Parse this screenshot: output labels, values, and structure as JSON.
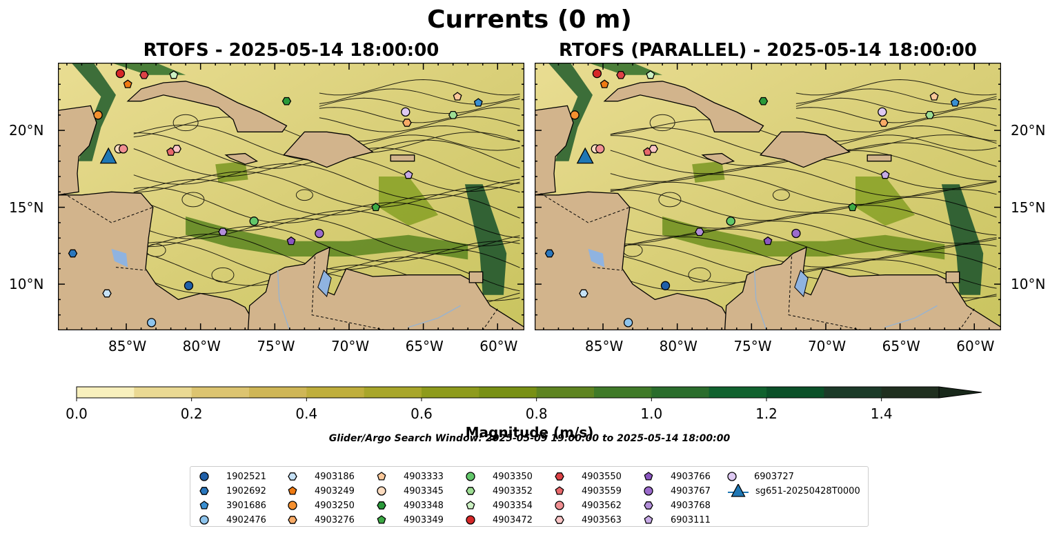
{
  "suptitle": "Currents (0 m)",
  "panels": [
    {
      "title": "RTOFS - 2025-05-14 18:00:00"
    },
    {
      "title": "RTOFS (PARALLEL) - 2025-05-14 18:00:00"
    }
  ],
  "colors": {
    "land": "#d2b48c",
    "lake": "#8fb3e0",
    "river": "#9bb3cc",
    "ocean_low": "#f3e9a8",
    "ocean_high": "#0c4a25",
    "streamline": "#000000"
  },
  "x_ticks": [
    "85°W",
    "80°W",
    "75°W",
    "70°W",
    "65°W",
    "60°W"
  ],
  "y_ticks": [
    "20°N",
    "15°N",
    "10°N"
  ],
  "colorbar": {
    "label": "Magnitude (m/s)",
    "ticks": [
      "0.0",
      "0.2",
      "0.4",
      "0.6",
      "0.8",
      "1.0",
      "1.2",
      "1.4"
    ],
    "colors": [
      "#f8f0bd",
      "#ead993",
      "#dcc470",
      "#cfb656",
      "#bfae3c",
      "#a8a62a",
      "#8e9b1c",
      "#789014",
      "#5e8420",
      "#3f7a28",
      "#2a6d2c",
      "#10622e",
      "#0a5028",
      "#1b3a28",
      "#1f2f1f",
      "#18281a"
    ]
  },
  "search_window": "Glider/Argo Search Window: 2025-05-09 19:00:00 to 2025-05-14 18:00:00",
  "legend": [
    {
      "label": "1902521",
      "marker": "circle",
      "color": "#1f5fa8"
    },
    {
      "label": "1902692",
      "marker": "hexagon",
      "color": "#2a77bd"
    },
    {
      "label": "3901686",
      "marker": "pentagon",
      "color": "#3a8fd1"
    },
    {
      "label": "4902476",
      "marker": "circle",
      "color": "#8ec4ec"
    },
    {
      "label": "4903186",
      "marker": "hexagon",
      "color": "#c6e2f7"
    },
    {
      "label": "4903249",
      "marker": "pentagon",
      "color": "#ef7a12"
    },
    {
      "label": "4903250",
      "marker": "circle",
      "color": "#f5902f"
    },
    {
      "label": "4903276",
      "marker": "hexagon",
      "color": "#f8ab67"
    },
    {
      "label": "4903333",
      "marker": "pentagon",
      "color": "#fbc89a"
    },
    {
      "label": "4903345",
      "marker": "circle",
      "color": "#fddcc0"
    },
    {
      "label": "4903348",
      "marker": "hexagon",
      "color": "#2a9a3a"
    },
    {
      "label": "4903349",
      "marker": "pentagon",
      "color": "#3daa45"
    },
    {
      "label": "4903350",
      "marker": "circle",
      "color": "#62c76a"
    },
    {
      "label": "4903352",
      "marker": "hexagon",
      "color": "#9ede94"
    },
    {
      "label": "4903354",
      "marker": "pentagon",
      "color": "#ccf1c3"
    },
    {
      "label": "4903472",
      "marker": "circle",
      "color": "#d62728"
    },
    {
      "label": "4903550",
      "marker": "hexagon",
      "color": "#dd4246"
    },
    {
      "label": "4903559",
      "marker": "pentagon",
      "color": "#e8686b"
    },
    {
      "label": "4903562",
      "marker": "circle",
      "color": "#f08f92"
    },
    {
      "label": "4903563",
      "marker": "hexagon",
      "color": "#f9c5c6"
    },
    {
      "label": "4903766",
      "marker": "pentagon",
      "color": "#8a56c0"
    },
    {
      "label": "4903767",
      "marker": "circle",
      "color": "#9b6bcc"
    },
    {
      "label": "4903768",
      "marker": "hexagon",
      "color": "#b38fd9"
    },
    {
      "label": "6903111",
      "marker": "pentagon",
      "color": "#c7aae6"
    },
    {
      "label": "6903727",
      "marker": "circle",
      "color": "#dec9f2"
    },
    {
      "label": "sg651-20250428T0000",
      "marker": "triangle",
      "color": "#1f77b4"
    }
  ],
  "floats": [
    {
      "id": "1902521",
      "lon": -80.8,
      "lat": 9.9
    },
    {
      "id": "1902692",
      "lon": -88.6,
      "lat": 12.0
    },
    {
      "id": "3901686",
      "lon": -61.3,
      "lat": 21.8
    },
    {
      "id": "4902476",
      "lon": -83.3,
      "lat": 7.5
    },
    {
      "id": "4903186",
      "lon": -86.3,
      "lat": 9.4
    },
    {
      "id": "4903249",
      "lon": -84.9,
      "lat": 23.0
    },
    {
      "id": "4903250",
      "lon": -86.9,
      "lat": 21.0
    },
    {
      "id": "4903276",
      "lon": -66.1,
      "lat": 20.5
    },
    {
      "id": "4903333",
      "lon": -62.7,
      "lat": 22.2
    },
    {
      "id": "4903345",
      "lon": -85.5,
      "lat": 18.8
    },
    {
      "id": "4903348",
      "lon": -74.2,
      "lat": 21.9
    },
    {
      "id": "4903349",
      "lon": -68.2,
      "lat": 15.0
    },
    {
      "id": "4903350",
      "lon": -76.4,
      "lat": 14.1
    },
    {
      "id": "4903352",
      "lon": -63.0,
      "lat": 21.0
    },
    {
      "id": "4903354",
      "lon": -81.8,
      "lat": 23.6
    },
    {
      "id": "4903472",
      "lon": -85.4,
      "lat": 23.7
    },
    {
      "id": "4903550",
      "lon": -83.8,
      "lat": 23.6
    },
    {
      "id": "4903559",
      "lon": -82.0,
      "lat": 18.6
    },
    {
      "id": "4903562",
      "lon": -85.2,
      "lat": 18.8
    },
    {
      "id": "4903563",
      "lon": -81.6,
      "lat": 18.8
    },
    {
      "id": "4903766",
      "lon": -73.9,
      "lat": 12.8
    },
    {
      "id": "4903767",
      "lon": -72.0,
      "lat": 13.3
    },
    {
      "id": "4903768",
      "lon": -78.5,
      "lat": 13.4
    },
    {
      "id": "6903111",
      "lon": -66.0,
      "lat": 17.1
    },
    {
      "id": "6903727",
      "lon": -66.2,
      "lat": 21.2
    },
    {
      "id": "sg651-20250428T0000",
      "lon": -86.2,
      "lat": 18.3
    }
  ]
}
